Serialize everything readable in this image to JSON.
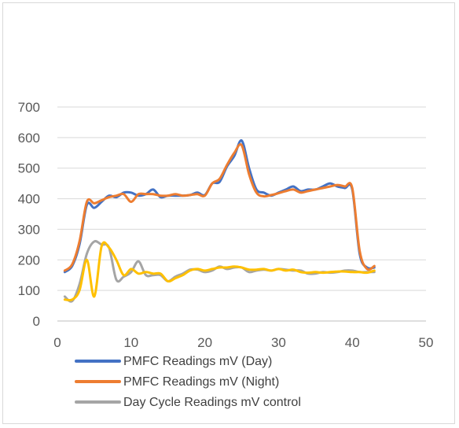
{
  "chart_data": {
    "type": "line",
    "title": "",
    "xlabel": "",
    "ylabel": "",
    "xlim": [
      0,
      50
    ],
    "ylim": [
      0,
      700
    ],
    "x_ticks": [
      "0",
      "10",
      "20",
      "30",
      "40",
      "50"
    ],
    "y_ticks": [
      "0",
      "100",
      "200",
      "300",
      "400",
      "500",
      "600",
      "700"
    ],
    "grid": "horizontal",
    "legend_position": "bottom",
    "series": [
      {
        "name": "PMFC Readings mV (Day)",
        "color": "#4472c4",
        "x": [
          1,
          2,
          3,
          4,
          5,
          6,
          7,
          8,
          9,
          10,
          11,
          12,
          13,
          14,
          15,
          16,
          17,
          18,
          19,
          20,
          21,
          22,
          23,
          24,
          25,
          26,
          27,
          28,
          29,
          30,
          31,
          32,
          33,
          34,
          35,
          36,
          37,
          38,
          39,
          40,
          41,
          42,
          43
        ],
        "y": [
          160,
          180,
          250,
          380,
          370,
          390,
          410,
          405,
          420,
          420,
          410,
          415,
          430,
          405,
          410,
          410,
          410,
          412,
          420,
          412,
          450,
          455,
          505,
          540,
          590,
          500,
          430,
          420,
          410,
          420,
          430,
          440,
          425,
          430,
          430,
          440,
          450,
          440,
          435,
          430,
          220,
          175,
          175
        ]
      },
      {
        "name": "PMFC Readings mV (Night)",
        "color": "#ed7d31",
        "x": [
          1,
          2,
          3,
          4,
          5,
          6,
          7,
          8,
          9,
          10,
          11,
          12,
          13,
          14,
          15,
          16,
          17,
          18,
          19,
          20,
          21,
          22,
          23,
          24,
          25,
          26,
          27,
          28,
          29,
          30,
          31,
          32,
          33,
          34,
          35,
          36,
          37,
          38,
          39,
          40,
          41,
          42,
          43
        ],
        "y": [
          165,
          185,
          260,
          390,
          385,
          395,
          405,
          410,
          415,
          390,
          415,
          415,
          415,
          410,
          410,
          415,
          410,
          412,
          415,
          410,
          450,
          465,
          510,
          550,
          575,
          480,
          420,
          408,
          412,
          418,
          425,
          430,
          420,
          425,
          430,
          435,
          440,
          445,
          440,
          435,
          230,
          170,
          180
        ]
      },
      {
        "name": "Day Cycle Readings mV control",
        "color": "#a5a5a5",
        "x": [
          1,
          2,
          3,
          4,
          5,
          6,
          7,
          8,
          9,
          10,
          11,
          12,
          13,
          14,
          15,
          16,
          17,
          18,
          19,
          20,
          21,
          22,
          23,
          24,
          25,
          26,
          27,
          28,
          29,
          30,
          31,
          32,
          33,
          34,
          35,
          36,
          37,
          38,
          39,
          40,
          41,
          42,
          43
        ],
        "y": [
          80,
          65,
          120,
          220,
          260,
          250,
          240,
          135,
          145,
          160,
          195,
          150,
          150,
          150,
          130,
          145,
          155,
          168,
          168,
          160,
          165,
          178,
          170,
          175,
          175,
          160,
          165,
          168,
          165,
          170,
          168,
          165,
          165,
          155,
          155,
          160,
          158,
          160,
          165,
          165,
          160,
          160,
          160
        ]
      },
      {
        "name": "",
        "color": "#ffc000",
        "x": [
          1,
          2,
          3,
          4,
          5,
          6,
          7,
          8,
          9,
          10,
          11,
          12,
          13,
          14,
          15,
          16,
          17,
          18,
          19,
          20,
          21,
          22,
          23,
          24,
          25,
          26,
          27,
          28,
          29,
          30,
          31,
          32,
          33,
          34,
          35,
          36,
          37,
          38,
          39,
          40,
          41,
          42,
          43
        ],
        "y": [
          70,
          70,
          100,
          200,
          80,
          245,
          240,
          200,
          150,
          170,
          155,
          160,
          155,
          155,
          130,
          140,
          150,
          165,
          170,
          165,
          170,
          175,
          175,
          178,
          175,
          168,
          168,
          170,
          165,
          170,
          165,
          168,
          160,
          158,
          160,
          158,
          160,
          162,
          162,
          160,
          160,
          158,
          165
        ]
      }
    ]
  }
}
